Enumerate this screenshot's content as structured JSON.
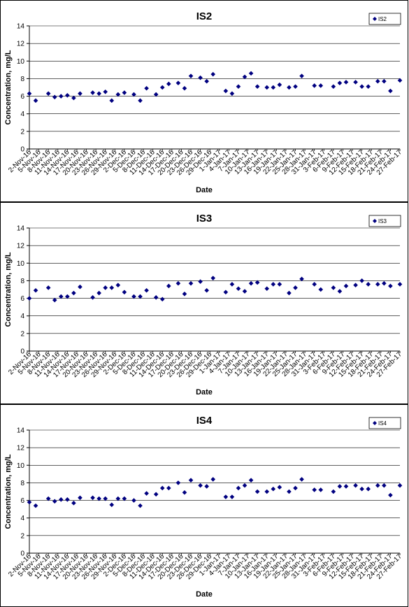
{
  "chart_data": [
    {
      "type": "scatter",
      "title": "IS2",
      "xlabel": "Date",
      "ylabel": "Concentration, mg/L",
      "ylim": [
        0,
        14
      ],
      "yticks": [
        0,
        2,
        4,
        6,
        8,
        10,
        12,
        14
      ],
      "xlim": [
        "2016-11-02",
        "2017-02-27"
      ],
      "xtick_labels": [
        "2-Nov-16",
        "5-Nov-16",
        "8-Nov-16",
        "11-Nov-16",
        "14-Nov-16",
        "17-Nov-16",
        "20-Nov-16",
        "23-Nov-16",
        "26-Nov-16",
        "29-Nov-16",
        "2-Dec-16",
        "5-Dec-16",
        "8-Dec-16",
        "11-Dec-16",
        "14-Dec-16",
        "17-Dec-16",
        "20-Dec-16",
        "23-Dec-16",
        "26-Dec-16",
        "29-Dec-16",
        "1-Jan-17",
        "4-Jan-17",
        "7-Jan-17",
        "10-Jan-17",
        "13-Jan-17",
        "16-Jan-17",
        "19-Jan-17",
        "22-Jan-17",
        "25-Jan-17",
        "28-Jan-17",
        "31-Jan-17",
        "3-Feb-17",
        "6-Feb-17",
        "9-Feb-17",
        "12-Feb-17",
        "15-Feb-17",
        "18-Feb-17",
        "21-Feb-17",
        "24-Feb-17",
        "27-Feb-17"
      ],
      "grid": "horizontal",
      "legend_position": "top-right",
      "series": [
        {
          "name": "IS2",
          "color": "#000080",
          "marker": "diamond",
          "x": [
            "2016-11-02",
            "2016-11-04",
            "2016-11-08",
            "2016-11-10",
            "2016-11-12",
            "2016-11-14",
            "2016-11-16",
            "2016-11-18",
            "2016-11-22",
            "2016-11-24",
            "2016-11-26",
            "2016-11-28",
            "2016-11-30",
            "2016-12-02",
            "2016-12-05",
            "2016-12-07",
            "2016-12-09",
            "2016-12-12",
            "2016-12-14",
            "2016-12-16",
            "2016-12-19",
            "2016-12-21",
            "2016-12-23",
            "2016-12-26",
            "2016-12-28",
            "2016-12-30",
            "2017-01-03",
            "2017-01-05",
            "2017-01-07",
            "2017-01-09",
            "2017-01-11",
            "2017-01-13",
            "2017-01-16",
            "2017-01-18",
            "2017-01-20",
            "2017-01-23",
            "2017-01-25",
            "2017-01-27",
            "2017-01-31",
            "2017-02-02",
            "2017-02-06",
            "2017-02-08",
            "2017-02-10",
            "2017-02-13",
            "2017-02-15",
            "2017-02-17",
            "2017-02-20",
            "2017-02-22",
            "2017-02-24",
            "2017-02-27"
          ],
          "y": [
            6.3,
            5.5,
            6.3,
            5.9,
            6.0,
            6.1,
            5.8,
            6.3,
            6.4,
            6.3,
            6.5,
            5.5,
            6.2,
            6.4,
            6.2,
            5.5,
            6.9,
            6.2,
            7.0,
            7.4,
            7.5,
            6.9,
            8.3,
            8.1,
            7.7,
            8.5,
            6.6,
            6.3,
            7.1,
            8.2,
            8.6,
            7.1,
            7.0,
            7.0,
            7.3,
            7.0,
            7.1,
            8.3,
            7.2,
            7.2,
            7.1,
            7.5,
            7.6,
            7.6,
            7.1,
            7.1,
            7.7,
            7.7,
            6.6,
            7.8
          ]
        }
      ]
    },
    {
      "type": "scatter",
      "title": "IS3",
      "xlabel": "Date",
      "ylabel": "Concentration, mg/L",
      "ylim": [
        0,
        14
      ],
      "yticks": [
        0,
        2,
        4,
        6,
        8,
        10,
        12,
        14
      ],
      "xlim": [
        "2016-11-02",
        "2017-02-27"
      ],
      "xtick_labels": [
        "2-Nov-16",
        "5-Nov-16",
        "8-Nov-16",
        "11-Nov-16",
        "14-Nov-16",
        "17-Nov-16",
        "20-Nov-16",
        "23-Nov-16",
        "26-Nov-16",
        "29-Nov-16",
        "2-Dec-16",
        "5-Dec-16",
        "8-Dec-16",
        "11-Dec-16",
        "14-Dec-16",
        "17-Dec-16",
        "20-Dec-16",
        "23-Dec-16",
        "26-Dec-16",
        "29-Dec-16",
        "1-Jan-17",
        "4-Jan-17",
        "7-Jan-17",
        "10-Jan-17",
        "13-Jan-17",
        "16-Jan-17",
        "19-Jan-17",
        "22-Jan-17",
        "25-Jan-17",
        "28-Jan-17",
        "31-Jan-17",
        "3-Feb-17",
        "6-Feb-17",
        "9-Feb-17",
        "12-Feb-17",
        "15-Feb-17",
        "18-Feb-17",
        "21-Feb-17",
        "24-Feb-17",
        "27-Feb-17"
      ],
      "grid": "horizontal",
      "legend_position": "top-right",
      "series": [
        {
          "name": "IS3",
          "color": "#000080",
          "marker": "diamond",
          "x": [
            "2016-11-02",
            "2016-11-04",
            "2016-11-08",
            "2016-11-10",
            "2016-11-12",
            "2016-11-14",
            "2016-11-16",
            "2016-11-18",
            "2016-11-22",
            "2016-11-24",
            "2016-11-26",
            "2016-11-28",
            "2016-11-30",
            "2016-12-02",
            "2016-12-05",
            "2016-12-07",
            "2016-12-09",
            "2016-12-12",
            "2016-12-14",
            "2016-12-16",
            "2016-12-19",
            "2016-12-21",
            "2016-12-23",
            "2016-12-26",
            "2016-12-28",
            "2016-12-30",
            "2017-01-03",
            "2017-01-05",
            "2017-01-07",
            "2017-01-09",
            "2017-01-11",
            "2017-01-13",
            "2017-01-16",
            "2017-01-18",
            "2017-01-20",
            "2017-01-23",
            "2017-01-25",
            "2017-01-27",
            "2017-01-31",
            "2017-02-02",
            "2017-02-06",
            "2017-02-08",
            "2017-02-10",
            "2017-02-13",
            "2017-02-15",
            "2017-02-17",
            "2017-02-20",
            "2017-02-22",
            "2017-02-24",
            "2017-02-27"
          ],
          "y": [
            6.0,
            6.9,
            7.2,
            5.8,
            6.2,
            6.2,
            6.6,
            7.3,
            6.1,
            6.6,
            7.2,
            7.2,
            7.5,
            6.7,
            6.2,
            6.2,
            6.9,
            6.1,
            5.9,
            7.4,
            7.7,
            6.5,
            7.7,
            7.9,
            6.9,
            8.3,
            6.7,
            7.6,
            7.1,
            6.8,
            7.7,
            7.8,
            7.1,
            7.6,
            7.6,
            6.6,
            7.2,
            8.2,
            7.6,
            7.0,
            7.2,
            6.8,
            7.4,
            7.5,
            8.0,
            7.6,
            7.6,
            7.7,
            7.4,
            7.6
          ]
        }
      ]
    },
    {
      "type": "scatter",
      "title": "IS4",
      "xlabel": "Date",
      "ylabel": "Concentration, mg/L",
      "ylim": [
        0,
        14
      ],
      "yticks": [
        0,
        2,
        4,
        6,
        8,
        10,
        12,
        14
      ],
      "xlim": [
        "2016-11-02",
        "2017-02-27"
      ],
      "xtick_labels": [
        "2-Nov-16",
        "5-Nov-16",
        "8-Nov-16",
        "11-Nov-16",
        "14-Nov-16",
        "17-Nov-16",
        "20-Nov-16",
        "23-Nov-16",
        "26-Nov-16",
        "29-Nov-16",
        "2-Dec-16",
        "5-Dec-16",
        "8-Dec-16",
        "11-Dec-16",
        "14-Dec-16",
        "17-Dec-16",
        "20-Dec-16",
        "23-Dec-16",
        "26-Dec-16",
        "29-Dec-16",
        "1-Jan-17",
        "4-Jan-17",
        "7-Jan-17",
        "10-Jan-17",
        "13-Jan-17",
        "16-Jan-17",
        "19-Jan-17",
        "22-Jan-17",
        "25-Jan-17",
        "28-Jan-17",
        "31-Jan-17",
        "3-Feb-17",
        "6-Feb-17",
        "9-Feb-17",
        "12-Feb-17",
        "15-Feb-17",
        "18-Feb-17",
        "21-Feb-17",
        "24-Feb-17",
        "27-Feb-17"
      ],
      "grid": "horizontal",
      "legend_position": "top-right",
      "series": [
        {
          "name": "IS4",
          "color": "#000080",
          "marker": "diamond",
          "x": [
            "2016-11-02",
            "2016-11-04",
            "2016-11-08",
            "2016-11-10",
            "2016-11-12",
            "2016-11-14",
            "2016-11-16",
            "2016-11-18",
            "2016-11-22",
            "2016-11-24",
            "2016-11-26",
            "2016-11-28",
            "2016-11-30",
            "2016-12-02",
            "2016-12-05",
            "2016-12-07",
            "2016-12-09",
            "2016-12-12",
            "2016-12-14",
            "2016-12-16",
            "2016-12-19",
            "2016-12-21",
            "2016-12-23",
            "2016-12-26",
            "2016-12-28",
            "2016-12-30",
            "2017-01-03",
            "2017-01-05",
            "2017-01-07",
            "2017-01-09",
            "2017-01-11",
            "2017-01-13",
            "2017-01-16",
            "2017-01-18",
            "2017-01-20",
            "2017-01-23",
            "2017-01-25",
            "2017-01-27",
            "2017-01-31",
            "2017-02-02",
            "2017-02-06",
            "2017-02-08",
            "2017-02-10",
            "2017-02-13",
            "2017-02-15",
            "2017-02-17",
            "2017-02-20",
            "2017-02-22",
            "2017-02-24",
            "2017-02-27"
          ],
          "y": [
            5.8,
            5.4,
            6.2,
            5.9,
            6.1,
            6.1,
            5.7,
            6.3,
            6.3,
            6.2,
            6.2,
            5.5,
            6.2,
            6.2,
            6.0,
            5.4,
            6.8,
            6.7,
            7.4,
            7.4,
            8.0,
            6.9,
            8.3,
            7.7,
            7.6,
            8.4,
            6.4,
            6.4,
            7.4,
            7.7,
            8.3,
            7.0,
            7.0,
            7.3,
            7.5,
            7.0,
            7.4,
            8.4,
            7.2,
            7.2,
            7.0,
            7.6,
            7.6,
            7.7,
            7.3,
            7.3,
            7.7,
            7.7,
            6.6,
            7.7
          ]
        }
      ]
    }
  ]
}
